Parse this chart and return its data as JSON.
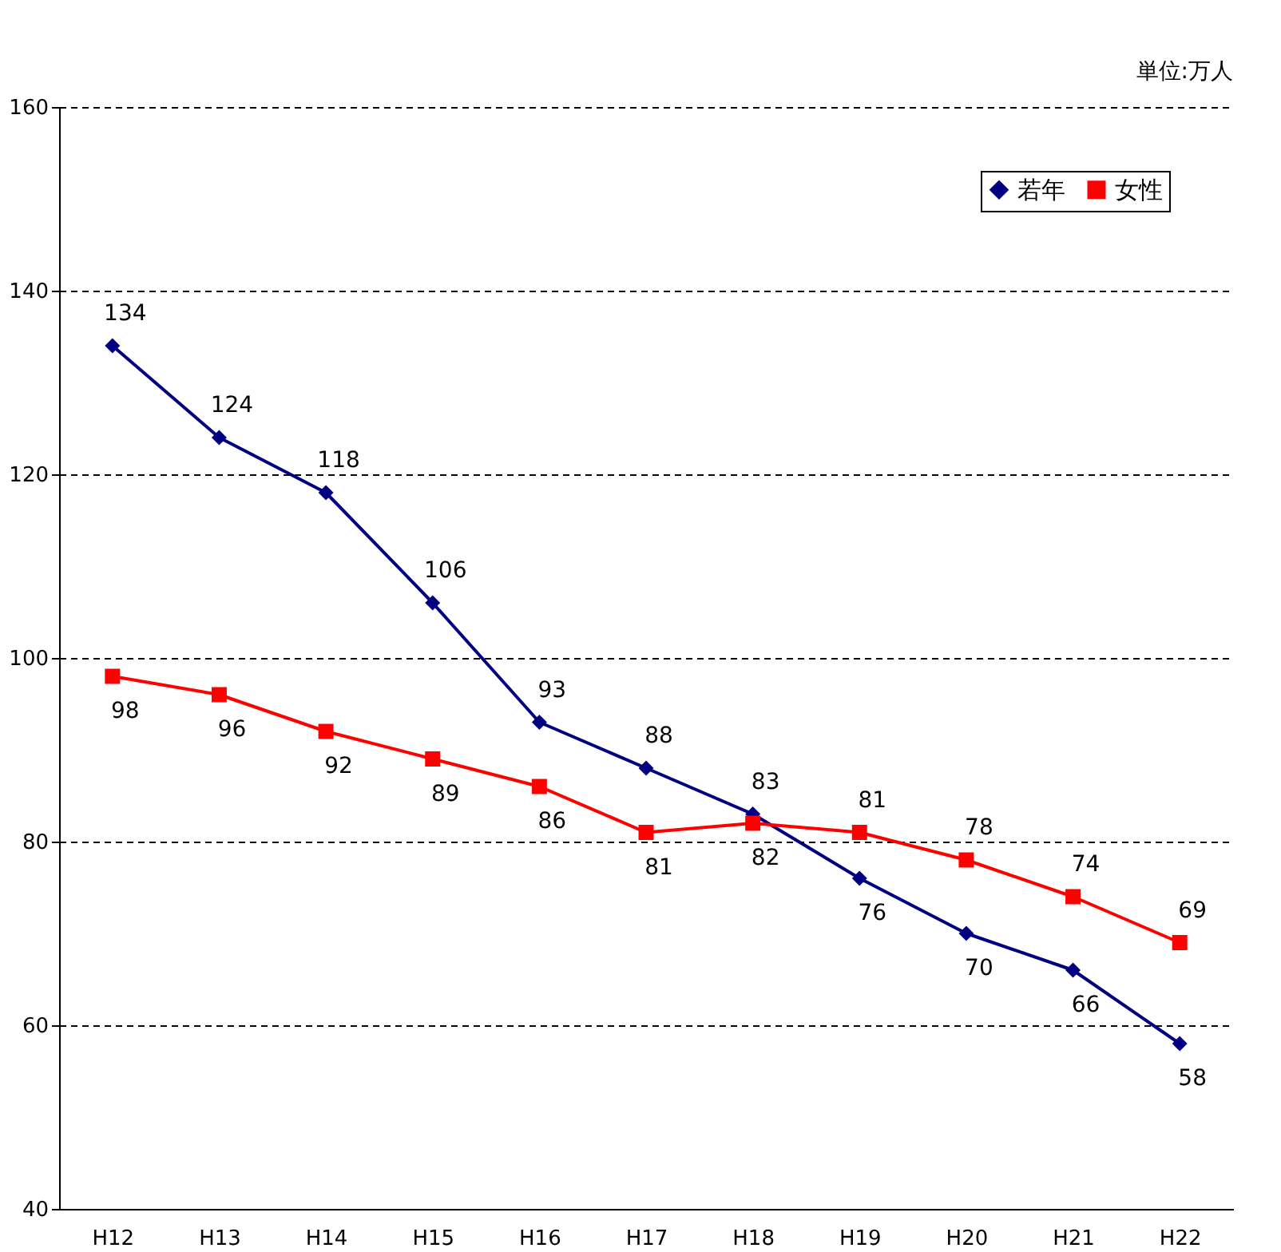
{
  "chart_data": {
    "type": "line",
    "categories": [
      "H12",
      "H13",
      "H14",
      "H15",
      "H16",
      "H17",
      "H18",
      "H19",
      "H20",
      "H21",
      "H22"
    ],
    "series": [
      {
        "name": "若年",
        "color": "#000080",
        "marker": "diamond",
        "values": [
          134,
          124,
          118,
          106,
          93,
          88,
          83,
          76,
          70,
          66,
          58
        ]
      },
      {
        "name": "女性",
        "color": "#ff0000",
        "marker": "square",
        "values": [
          98,
          96,
          92,
          89,
          86,
          81,
          82,
          81,
          78,
          74,
          69
        ]
      }
    ],
    "ylim": [
      40,
      160
    ],
    "yticks": [
      40,
      60,
      80,
      100,
      120,
      140,
      160
    ],
    "grid": "y",
    "legend": "top right",
    "data_labels": true,
    "line_style": "solid",
    "annotations": [
      "単位:万人"
    ]
  }
}
